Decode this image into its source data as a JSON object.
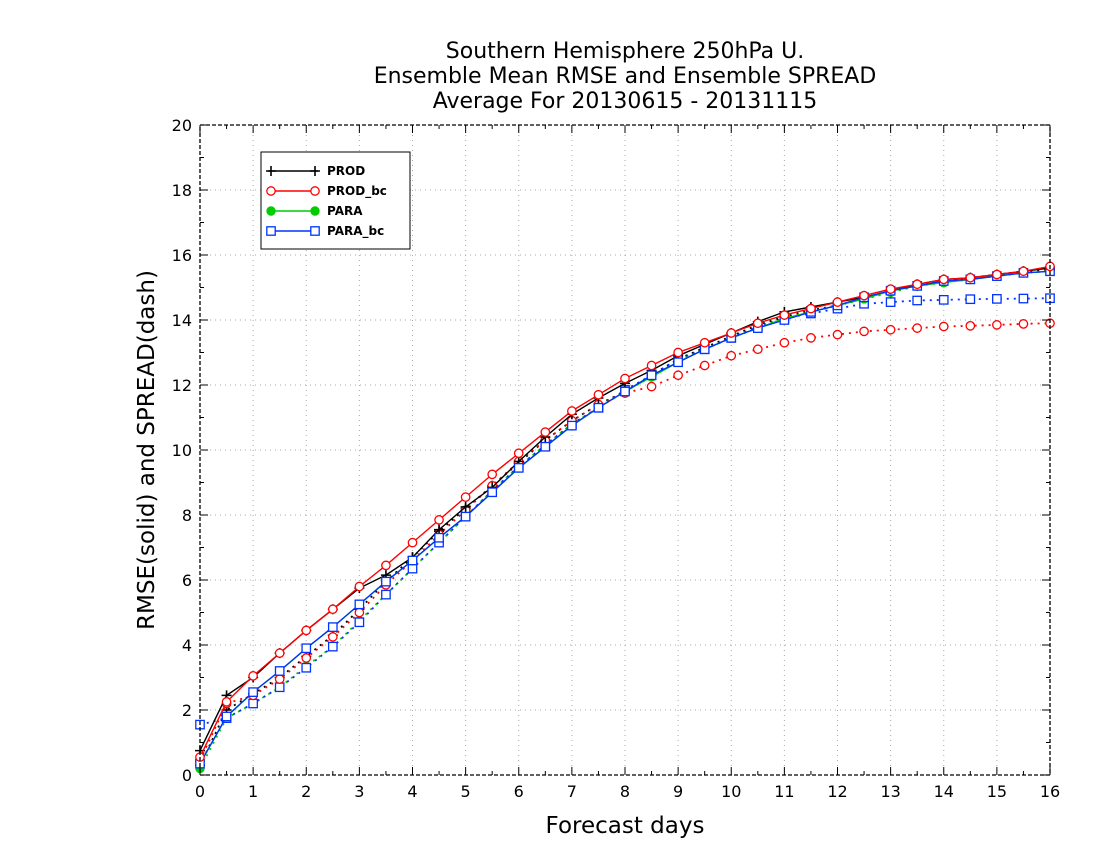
{
  "chart_data": {
    "type": "line",
    "title": [
      "Southern Hemisphere 250hPa U.",
      "Ensemble Mean RMSE and Ensemble SPREAD",
      "Average For 20130615 - 20131115"
    ],
    "xlabel": "Forecast days",
    "ylabel": "RMSE(solid) and SPREAD(dash)",
    "xlim": [
      0,
      16
    ],
    "ylim": [
      0,
      20
    ],
    "xticks": [
      "0",
      "1",
      "2",
      "3",
      "4",
      "5",
      "6",
      "7",
      "8",
      "9",
      "10",
      "11",
      "12",
      "13",
      "14",
      "15",
      "16"
    ],
    "yticks": [
      "0",
      "2",
      "4",
      "6",
      "8",
      "10",
      "12",
      "14",
      "16",
      "18",
      "20"
    ],
    "grid": true,
    "legend_position": "top-left",
    "x": [
      0,
      0.5,
      1,
      1.5,
      2,
      2.5,
      3,
      3.5,
      4,
      4.5,
      5,
      5.5,
      6,
      6.5,
      7,
      7.5,
      8,
      8.5,
      9,
      9.5,
      10,
      10.5,
      11,
      11.5,
      12,
      12.5,
      13,
      13.5,
      14,
      14.5,
      15,
      15.5,
      16
    ],
    "series": [
      {
        "name": "PROD",
        "color": "#000000",
        "marker": "plus",
        "rmse": [
          0.75,
          2.45,
          3.0,
          3.75,
          4.45,
          5.1,
          5.75,
          6.15,
          6.7,
          7.55,
          8.25,
          8.85,
          9.65,
          10.4,
          11.1,
          11.6,
          12.05,
          12.45,
          12.9,
          13.25,
          13.6,
          13.95,
          14.25,
          14.4,
          14.55,
          14.7,
          14.9,
          15.1,
          15.25,
          15.3,
          15.4,
          15.5,
          15.6
        ],
        "spread": [
          0.3,
          2.0,
          2.5,
          3.0,
          3.65,
          4.3,
          5.1,
          5.95,
          6.7,
          7.5,
          8.2,
          8.9,
          9.6,
          10.3,
          10.9,
          11.4,
          11.8,
          12.3,
          12.8,
          13.15,
          13.5,
          13.85,
          14.1,
          14.3,
          14.45,
          14.65,
          14.85,
          15.05,
          15.2,
          15.3,
          15.4,
          15.5,
          15.55
        ]
      },
      {
        "name": "PROD_bc",
        "color": "#ff0000",
        "marker": "circle",
        "rmse": [
          0.55,
          2.25,
          3.05,
          3.75,
          4.45,
          5.1,
          5.8,
          6.45,
          7.15,
          7.85,
          8.55,
          9.25,
          9.9,
          10.55,
          11.2,
          11.7,
          12.2,
          12.6,
          13.0,
          13.3,
          13.6,
          13.9,
          14.15,
          14.35,
          14.55,
          14.75,
          14.95,
          15.1,
          15.25,
          15.3,
          15.4,
          15.5,
          15.65
        ],
        "spread": [
          0.45,
          2.2,
          2.45,
          2.95,
          3.6,
          4.25,
          5.0,
          5.85,
          6.6,
          7.4,
          8.15,
          8.9,
          9.65,
          10.3,
          10.9,
          11.4,
          11.75,
          11.95,
          12.3,
          12.6,
          12.9,
          13.1,
          13.3,
          13.45,
          13.55,
          13.65,
          13.7,
          13.75,
          13.8,
          13.82,
          13.85,
          13.88,
          13.9
        ]
      },
      {
        "name": "PARA",
        "color": "#00cc00",
        "marker": "dot",
        "rmse": [
          0.35,
          1.8,
          2.55,
          3.2,
          3.9,
          4.55,
          5.25,
          5.95,
          6.6,
          7.3,
          7.95,
          8.7,
          9.45,
          10.1,
          10.75,
          11.3,
          11.8,
          12.25,
          12.7,
          13.1,
          13.45,
          13.75,
          14.05,
          14.25,
          14.45,
          14.65,
          14.9,
          15.05,
          15.15,
          15.25,
          15.35,
          15.45,
          15.5
        ],
        "spread": [
          0.2,
          1.75,
          2.2,
          2.7,
          3.35,
          3.95,
          4.75,
          5.55,
          6.35,
          7.15,
          7.95,
          8.75,
          9.5,
          10.15,
          10.8,
          11.3,
          11.8,
          12.25,
          12.75,
          13.1,
          13.45,
          13.75,
          14.05,
          14.25,
          14.45,
          14.65,
          14.85,
          15.05,
          15.15,
          15.25,
          15.35,
          15.45,
          15.5
        ]
      },
      {
        "name": "PARA_bc",
        "color": "#0033ff",
        "marker": "square",
        "rmse": [
          0.35,
          1.8,
          2.55,
          3.2,
          3.9,
          4.55,
          5.25,
          5.95,
          6.6,
          7.3,
          7.95,
          8.7,
          9.45,
          10.1,
          10.75,
          11.3,
          11.8,
          12.3,
          12.7,
          13.1,
          13.45,
          13.75,
          14.0,
          14.25,
          14.45,
          14.7,
          14.9,
          15.05,
          15.2,
          15.25,
          15.35,
          15.45,
          15.5
        ],
        "spread": [
          1.55,
          1.75,
          2.2,
          2.7,
          3.3,
          3.95,
          4.7,
          5.55,
          6.35,
          7.15,
          7.95,
          8.75,
          9.5,
          10.15,
          10.8,
          11.3,
          11.85,
          12.3,
          12.8,
          13.1,
          13.45,
          13.8,
          14.05,
          14.2,
          14.35,
          14.5,
          14.55,
          14.6,
          14.62,
          14.64,
          14.65,
          14.66,
          14.67
        ]
      }
    ]
  }
}
